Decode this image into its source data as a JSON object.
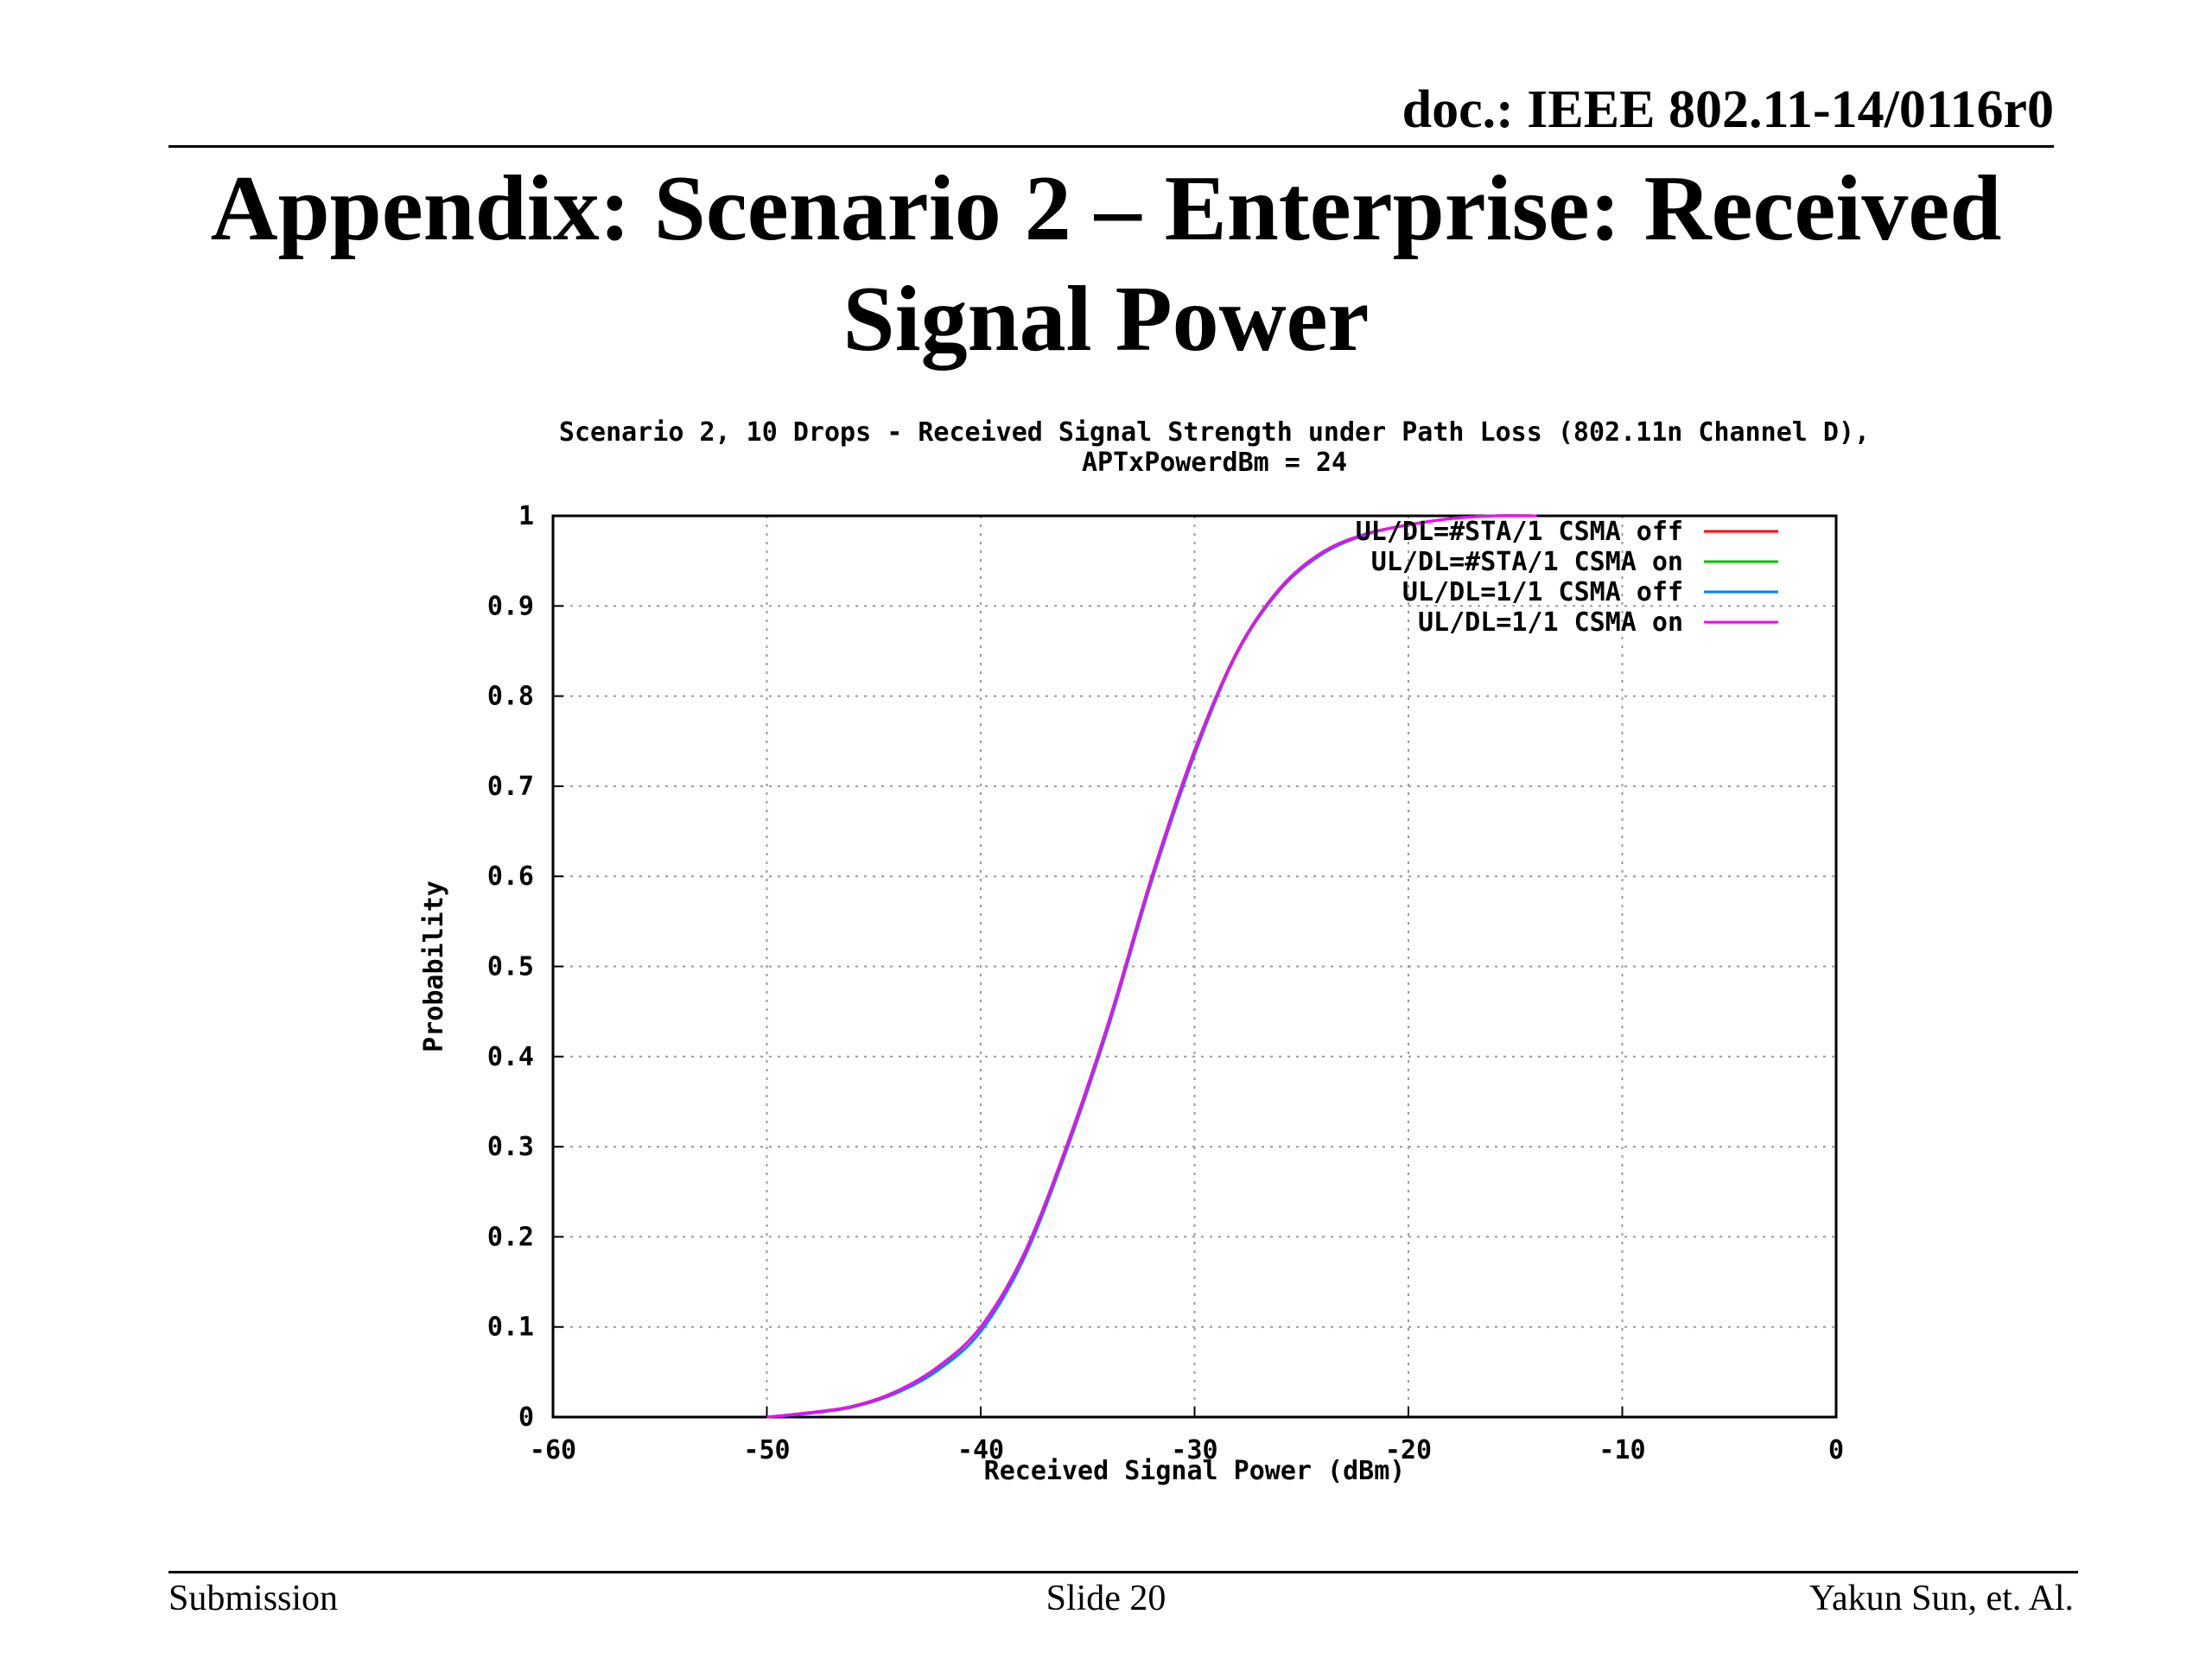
{
  "slide": {
    "doc_id": "doc.: IEEE 802.11-14/0116r0",
    "title_line1": "Appendix: Scenario 2 – Enterprise: Received",
    "title_line2": "Signal Power",
    "footer_left": "Submission",
    "footer_center": "Slide 20",
    "footer_right": "Yakun Sun, et. Al."
  },
  "chart_data": {
    "type": "line",
    "title_line1": "Scenario 2, 10 Drops - Received Signal Strength under Path Loss (802.11n Channel D),",
    "title_line2": "APTxPowerdBm = 24",
    "xlabel": "Received Signal Power (dBm)",
    "ylabel": "Probability",
    "xlim": [
      -60,
      0
    ],
    "ylim": [
      0,
      1
    ],
    "xticks": [
      "-60",
      "-50",
      "-40",
      "-30",
      "-20",
      "-10",
      "0"
    ],
    "yticks": [
      "0",
      "0.1",
      "0.2",
      "0.3",
      "0.4",
      "0.5",
      "0.6",
      "0.7",
      "0.8",
      "0.9",
      "1"
    ],
    "grid": true,
    "legend_position": "top-right",
    "x": [
      -50,
      -48,
      -46,
      -44,
      -42,
      -40,
      -38,
      -36,
      -34,
      -32,
      -30,
      -28,
      -26,
      -24,
      -22,
      -20,
      -18,
      -16,
      -14
    ],
    "series": [
      {
        "name": "UL/DL=#STA/1 CSMA off",
        "color": "#ff0000",
        "values": [
          0.0,
          0.005,
          0.012,
          0.028,
          0.055,
          0.1,
          0.18,
          0.3,
          0.44,
          0.6,
          0.74,
          0.85,
          0.92,
          0.96,
          0.98,
          0.99,
          0.997,
          1.0,
          1.0
        ]
      },
      {
        "name": "UL/DL=#STA/1 CSMA on",
        "color": "#00c000",
        "values": [
          0.0,
          0.005,
          0.012,
          0.028,
          0.055,
          0.1,
          0.18,
          0.3,
          0.44,
          0.6,
          0.74,
          0.85,
          0.92,
          0.96,
          0.98,
          0.99,
          0.997,
          1.0,
          1.0
        ]
      },
      {
        "name": "UL/DL=1/1 CSMA off",
        "color": "#0080ff",
        "values": [
          0.0,
          0.004,
          0.011,
          0.026,
          0.052,
          0.095,
          0.175,
          0.295,
          0.435,
          0.595,
          0.735,
          0.848,
          0.918,
          0.958,
          0.979,
          0.99,
          0.997,
          1.0,
          1.0
        ]
      },
      {
        "name": "UL/DL=1/1 CSMA on",
        "color": "#ff00ff",
        "values": [
          0.0,
          0.005,
          0.012,
          0.028,
          0.056,
          0.1,
          0.18,
          0.3,
          0.44,
          0.6,
          0.74,
          0.85,
          0.92,
          0.96,
          0.98,
          0.99,
          0.997,
          1.0,
          1.0
        ]
      }
    ]
  }
}
